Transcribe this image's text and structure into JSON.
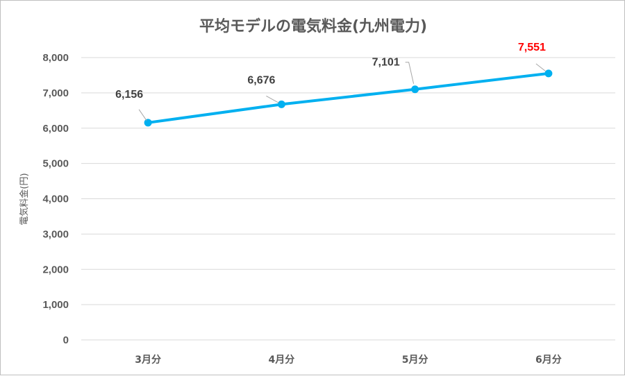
{
  "chart_data": {
    "type": "line",
    "title": "平均モデルの電気料金(九州電力)",
    "xlabel": "",
    "ylabel": "電気料金(円)",
    "categories": [
      "3月分",
      "4月分",
      "5月分",
      "6月分"
    ],
    "series": [
      {
        "values": [
          6156,
          6676,
          7101,
          7551
        ],
        "color": "#00b0f0"
      }
    ],
    "data_labels": [
      "6,156",
      "6,676",
      "7,101",
      "7,551"
    ],
    "data_label_colors": [
      "#404040",
      "#404040",
      "#404040",
      "#ff0000"
    ],
    "ylim": [
      0,
      8000
    ],
    "yticks": [
      0,
      1000,
      2000,
      3000,
      4000,
      5000,
      6000,
      7000,
      8000
    ],
    "ytick_labels": [
      "0",
      "1,000",
      "2,000",
      "3,000",
      "4,000",
      "5,000",
      "6,000",
      "7,000",
      "8,000"
    ],
    "grid": true,
    "legend": "none"
  }
}
